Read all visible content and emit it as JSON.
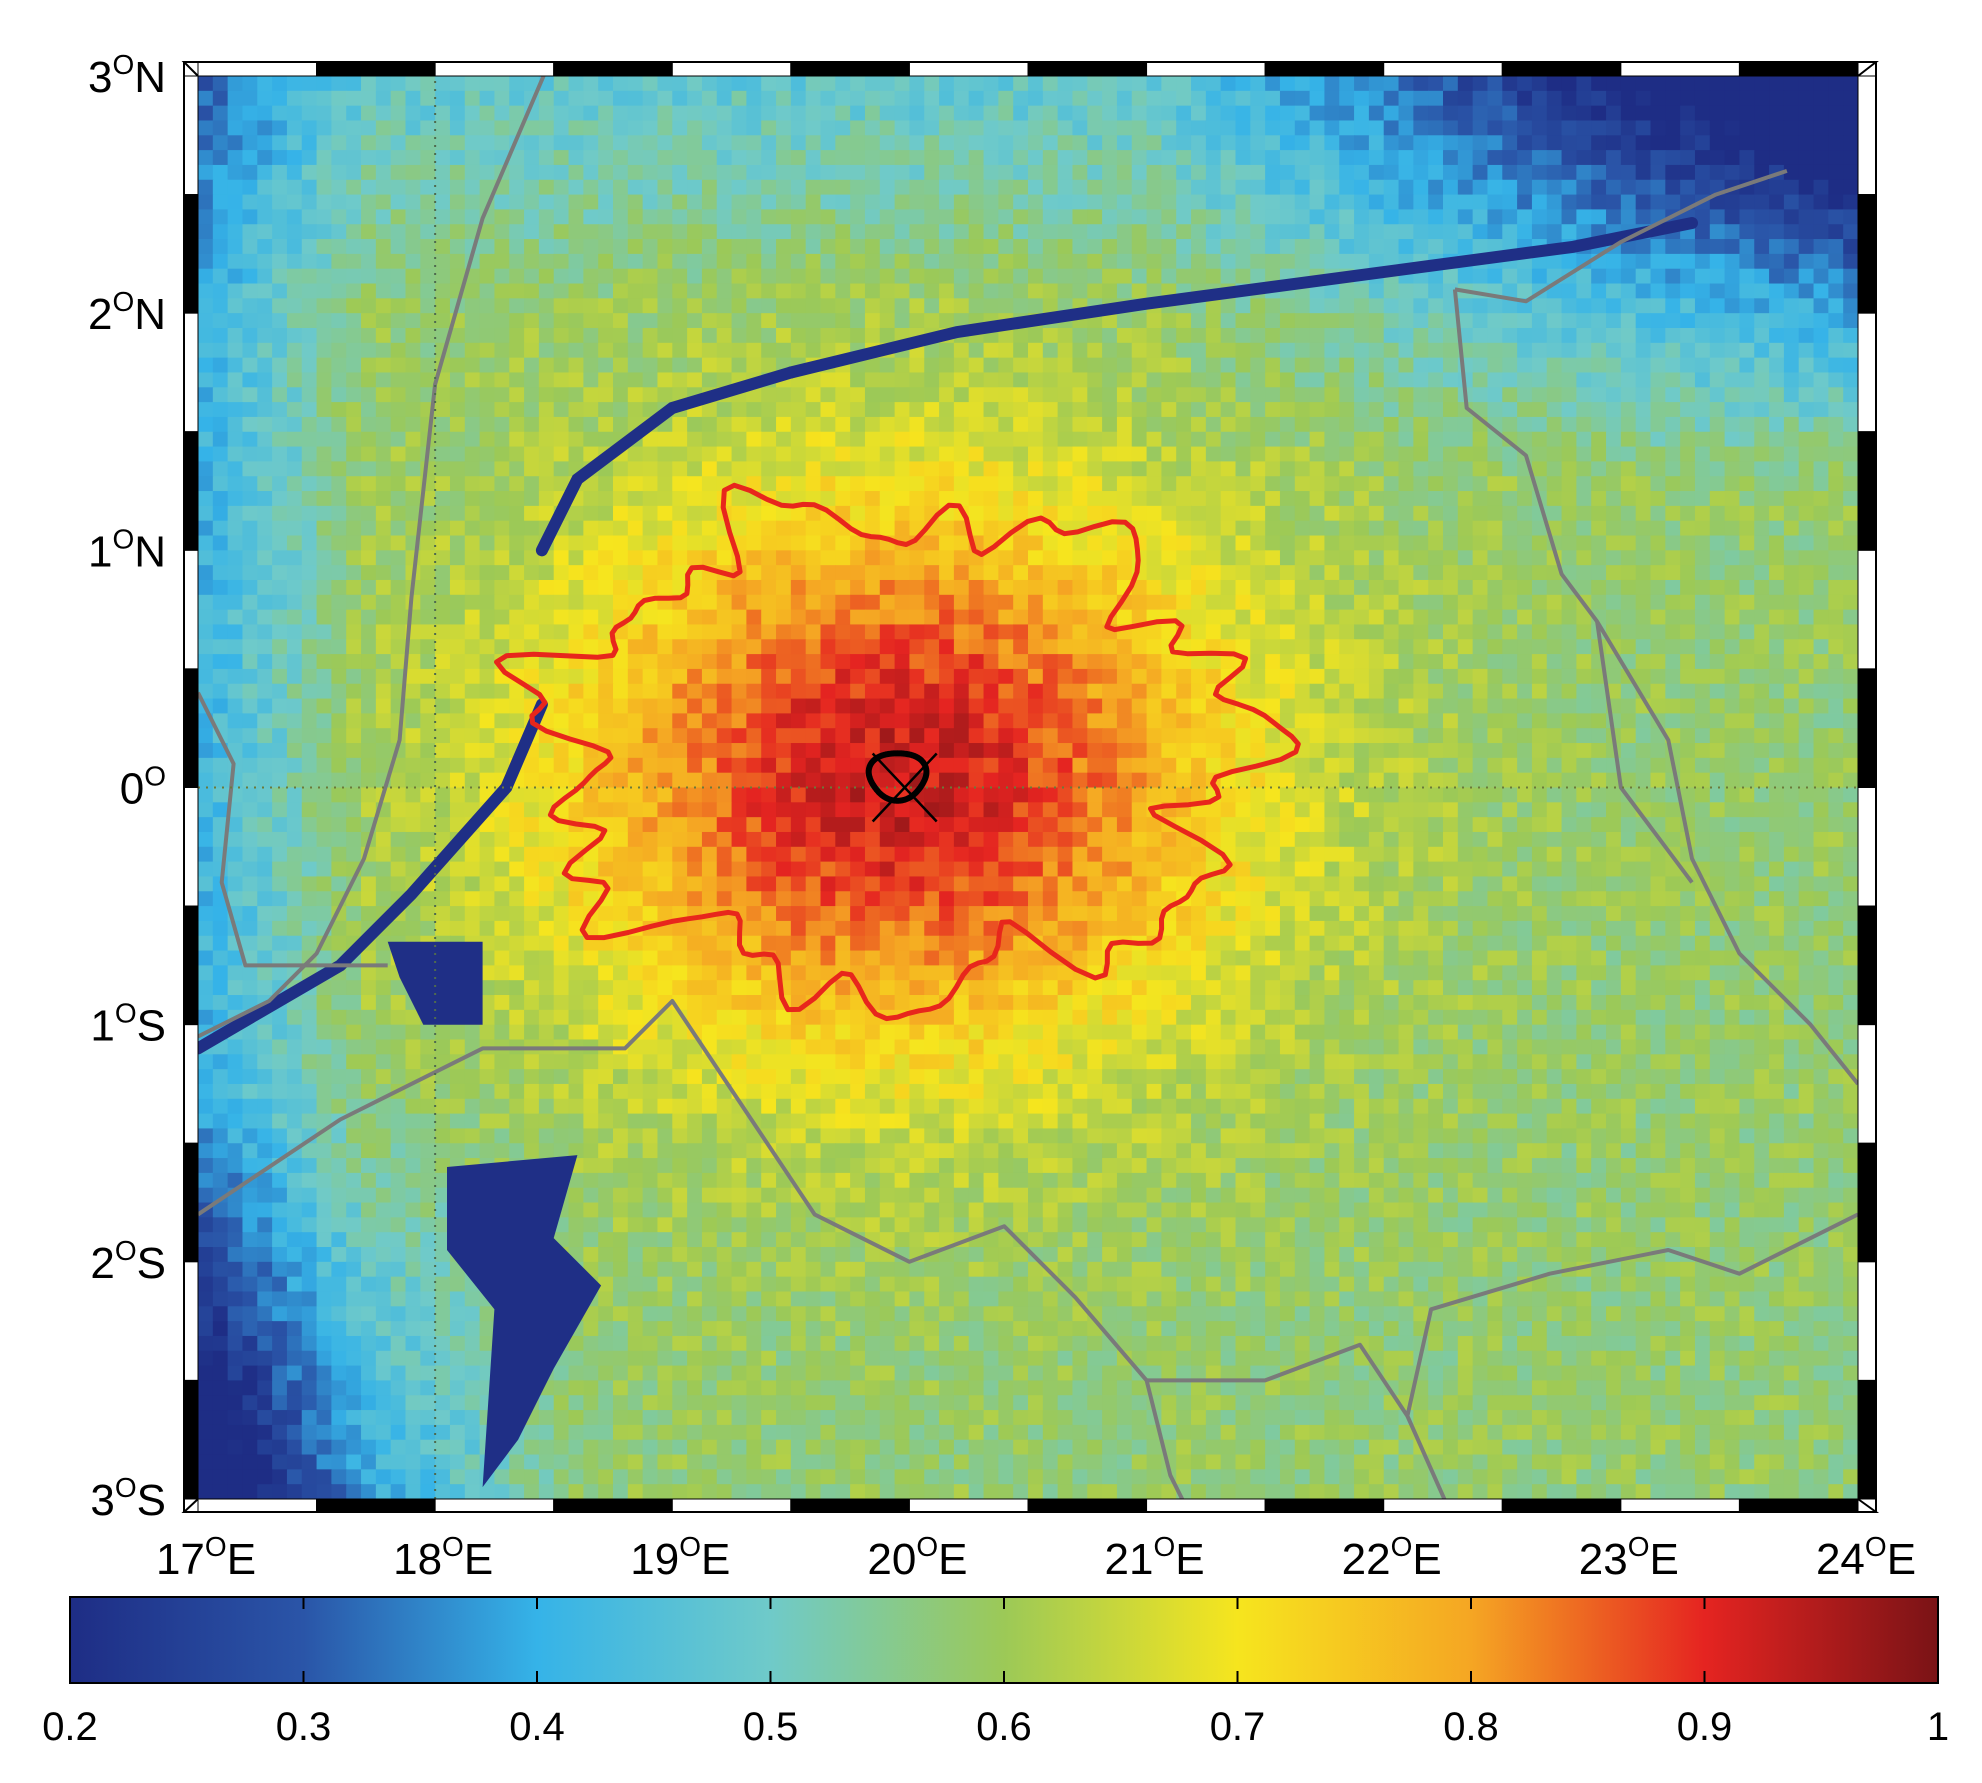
{
  "chart_data": {
    "type": "heatmap",
    "title": "",
    "xlabel": "",
    "ylabel": "",
    "xlim": [
      17,
      24
    ],
    "ylim": [
      -3,
      3
    ],
    "x_ticks": [
      {
        "value": 17,
        "deg": "17",
        "sup": "O",
        "hemi": "E"
      },
      {
        "value": 18,
        "deg": "18",
        "sup": "O",
        "hemi": "E"
      },
      {
        "value": 19,
        "deg": "19",
        "sup": "O",
        "hemi": "E"
      },
      {
        "value": 20,
        "deg": "20",
        "sup": "O",
        "hemi": "E"
      },
      {
        "value": 21,
        "deg": "21",
        "sup": "O",
        "hemi": "E"
      },
      {
        "value": 22,
        "deg": "22",
        "sup": "O",
        "hemi": "E"
      },
      {
        "value": 23,
        "deg": "23",
        "sup": "O",
        "hemi": "E"
      },
      {
        "value": 24,
        "deg": "24",
        "sup": "O",
        "hemi": "E"
      }
    ],
    "y_ticks": [
      {
        "value": 3,
        "deg": "3",
        "sup": "O",
        "hemi": "N"
      },
      {
        "value": 2,
        "deg": "2",
        "sup": "O",
        "hemi": "N"
      },
      {
        "value": 1,
        "deg": "1",
        "sup": "O",
        "hemi": "N"
      },
      {
        "value": 0,
        "deg": "0",
        "sup": "O",
        "hemi": ""
      },
      {
        "value": -1,
        "deg": "1",
        "sup": "O",
        "hemi": "S"
      },
      {
        "value": -2,
        "deg": "2",
        "sup": "O",
        "hemi": "S"
      },
      {
        "value": -3,
        "deg": "3",
        "sup": "O",
        "hemi": "S"
      }
    ],
    "field": {
      "peak_center": [
        19.95,
        0.05
      ],
      "peak_value": 0.93,
      "background_value": 0.58,
      "north_low_value": 0.3,
      "west_low_value": 0.4
    },
    "contours": [
      {
        "level": 0.7,
        "color": "#e8261c",
        "center": [
          19.95,
          0.15
        ],
        "radius_lon": 1.45,
        "radius_lat": 1.0
      },
      {
        "level": 0.93,
        "color": "#000000",
        "center": [
          19.95,
          0.05
        ],
        "radius_lon": 0.12,
        "radius_lat": 0.1
      }
    ],
    "point_marker": {
      "lon": 19.98,
      "lat": 0.0,
      "shape": "x"
    },
    "colorbar": {
      "min": 0.2,
      "max": 1.0,
      "ticks": [
        "0.2",
        "0.3",
        "0.4",
        "0.5",
        "0.6",
        "0.7",
        "0.8",
        "0.9",
        "1"
      ],
      "colormap": [
        "#1e2d85",
        "#2a55a8",
        "#35b3e8",
        "#6fcac9",
        "#9cc957",
        "#f6e51e",
        "#f5a623",
        "#e52421",
        "#7a1316"
      ]
    },
    "grid": false,
    "legend": "none"
  },
  "colors": {
    "border_line": "#7a7a7a",
    "river": "#1f2f86"
  }
}
